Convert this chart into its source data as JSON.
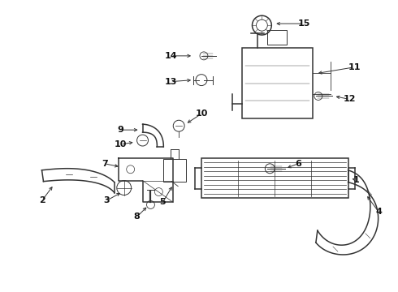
{
  "background": "#ffffff",
  "line_color": "#333333",
  "label_color": "#111111",
  "fig_width": 4.9,
  "fig_height": 3.6,
  "dpi": 100
}
